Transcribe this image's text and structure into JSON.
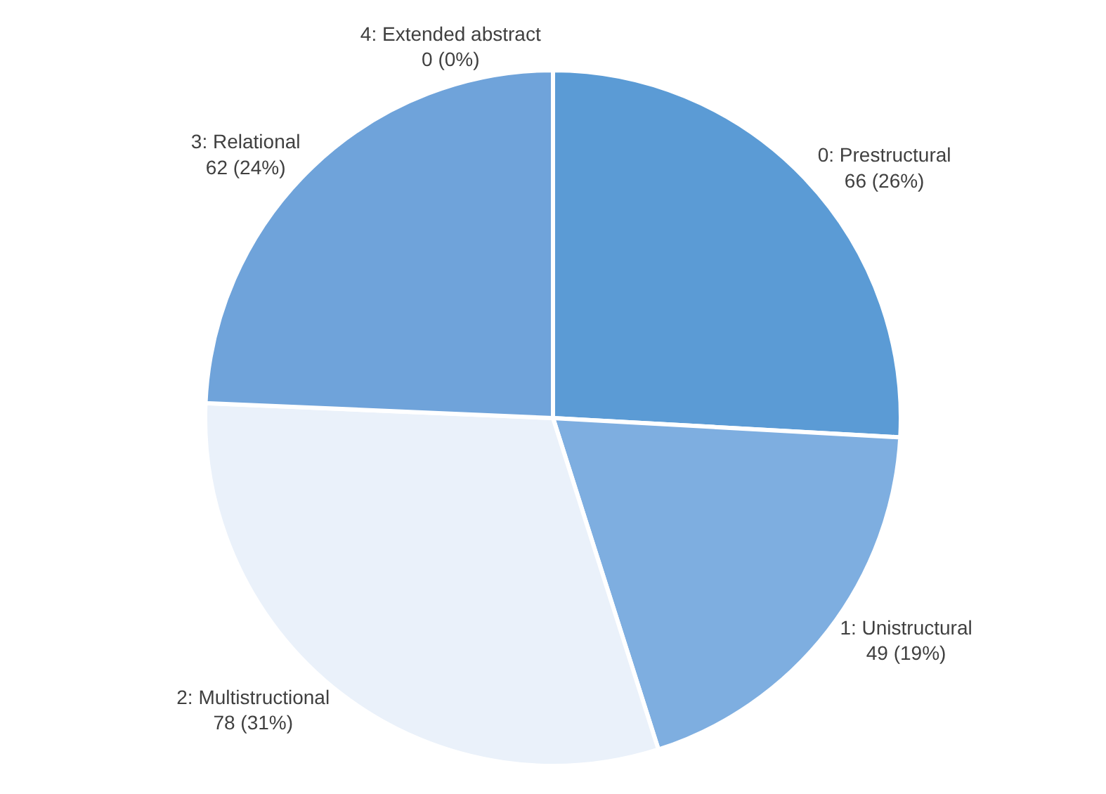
{
  "chart_data": {
    "type": "pie",
    "categories": [
      "0: Prestructural",
      "1: Unistructural",
      "2: Multistructional",
      "3: Relational",
      "4: Extended abstract"
    ],
    "values": [
      66,
      49,
      78,
      62,
      0
    ],
    "value_labels": [
      "66 (26%)",
      "49 (19%)",
      "78 (31%)",
      "62 (24%)",
      "0 (0%)"
    ],
    "colors": [
      "#5b9bd5",
      "#7eaee0",
      "#eaf1fa",
      "#6fa3da",
      "#c9dcf1"
    ],
    "legend": false
  }
}
